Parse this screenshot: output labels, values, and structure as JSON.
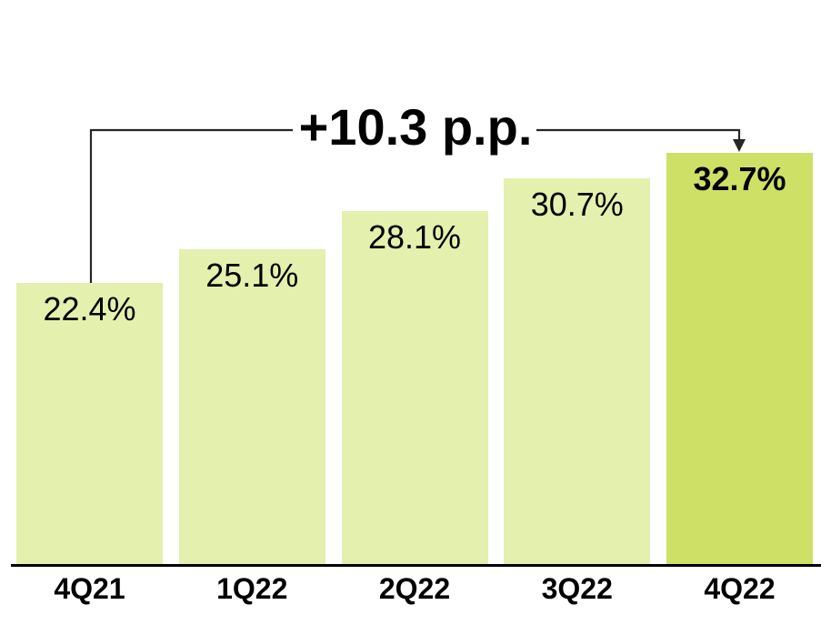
{
  "chart_data": {
    "type": "bar",
    "title": "",
    "xlabel": "",
    "ylabel": "",
    "categories": [
      "4Q21",
      "1Q22",
      "2Q22",
      "3Q22",
      "4Q22"
    ],
    "values": [
      22.4,
      25.1,
      28.1,
      30.7,
      32.7
    ],
    "value_labels": [
      "22.4%",
      "25.1%",
      "28.1%",
      "30.7%",
      "32.7%"
    ],
    "annotation": "+10.3 p.p.",
    "highlight_index": 4,
    "bar_color": "#e4f0ad",
    "highlight_bar_color": "#cfe066",
    "axis_color": "#000000",
    "connector_color": "#262626",
    "label_color": "#000000",
    "background_color": "#ffffff",
    "grid": false,
    "legend": false,
    "y_axis_visible": false,
    "ylim": [
      0,
      35
    ],
    "value_label_position": "inside-top"
  }
}
